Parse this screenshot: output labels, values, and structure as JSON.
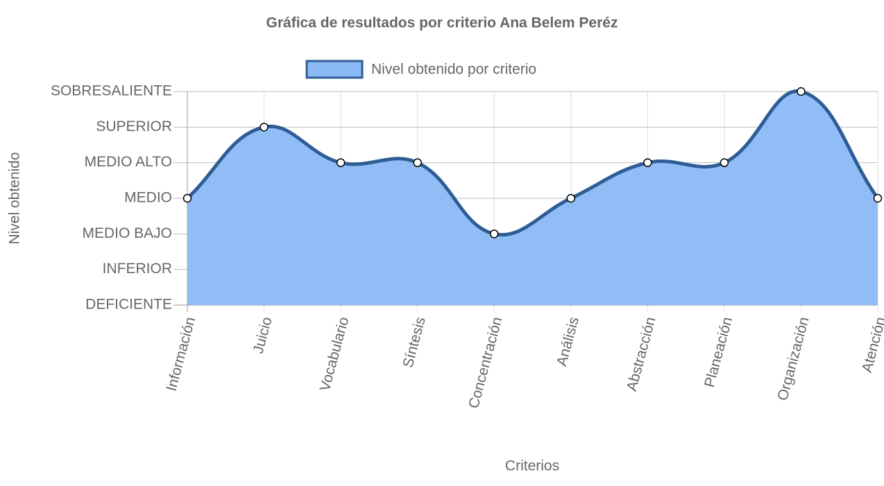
{
  "chart_data": {
    "type": "area",
    "title": "Gráfica de resultados por criterio Ana Belem Peréz",
    "x_label": "Criterios",
    "y_label": "Nivel obtenido",
    "categories": [
      "Información",
      "Juicio",
      "Vocabulario",
      "Síntesis",
      "Concentración",
      "Análisis",
      "Abstracción",
      "Planeación",
      "Organización",
      "Atención"
    ],
    "series": [
      {
        "name": "Nivel obtenido por criterio",
        "color": "#2e5d96",
        "fill": "#8ab9f5",
        "values": [
          4,
          6,
          5,
          5,
          3,
          4,
          5,
          5,
          7,
          4
        ]
      }
    ],
    "ylim": [
      1,
      7
    ],
    "yticks": [
      {
        "value": 1,
        "label": "DEFICIENTE"
      },
      {
        "value": 2,
        "label": "INFERIOR"
      },
      {
        "value": 3,
        "label": "MEDIO BAJO"
      },
      {
        "value": 4,
        "label": "MEDIO"
      },
      {
        "value": 5,
        "label": "MEDIO ALTO"
      },
      {
        "value": 6,
        "label": "SUPERIOR"
      },
      {
        "value": 7,
        "label": "SOBRESALIENTE"
      }
    ],
    "grid": true
  }
}
